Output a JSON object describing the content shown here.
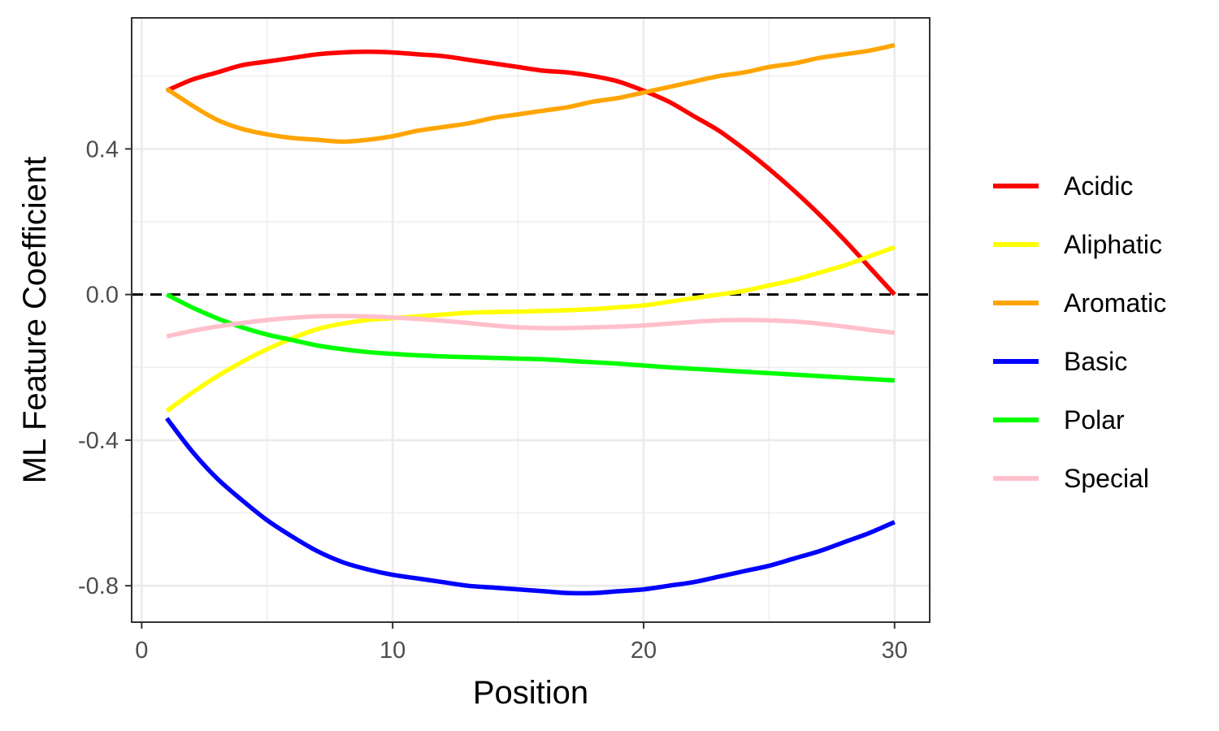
{
  "chart_data": {
    "type": "line",
    "title": "",
    "xlabel": "Position",
    "ylabel": "ML Feature Coefficient",
    "xlim": [
      -0.4,
      31.4
    ],
    "ylim": [
      -0.9,
      0.76
    ],
    "x_ticks": [
      0,
      10,
      20,
      30
    ],
    "x_tick_labels": [
      "0",
      "10",
      "20",
      "30"
    ],
    "y_ticks": [
      -0.8,
      -0.4,
      0.0,
      0.4
    ],
    "y_tick_labels": [
      "-0.8",
      "-0.4",
      "0.0",
      "0.4"
    ],
    "grid": true,
    "legend_position": "right",
    "reference_line": {
      "y": 0.0,
      "style": "dashed",
      "color": "#000000"
    },
    "series": [
      {
        "name": "Acidic",
        "color": "#ff0000",
        "x": [
          1,
          2,
          3,
          4,
          5,
          6,
          7,
          8,
          9,
          10,
          11,
          12,
          13,
          14,
          15,
          16,
          17,
          18,
          19,
          20,
          21,
          22,
          23,
          24,
          25,
          26,
          27,
          28,
          29,
          30
        ],
        "y": [
          0.56,
          0.59,
          0.61,
          0.63,
          0.64,
          0.65,
          0.66,
          0.665,
          0.667,
          0.665,
          0.66,
          0.655,
          0.645,
          0.635,
          0.625,
          0.615,
          0.61,
          0.6,
          0.585,
          0.56,
          0.53,
          0.49,
          0.45,
          0.4,
          0.345,
          0.285,
          0.22,
          0.15,
          0.075,
          0.0
        ]
      },
      {
        "name": "Aliphatic",
        "color": "#ffff00",
        "x": [
          1,
          2,
          3,
          4,
          5,
          6,
          7,
          8,
          9,
          10,
          11,
          12,
          13,
          14,
          15,
          16,
          17,
          18,
          19,
          20,
          21,
          22,
          23,
          24,
          25,
          26,
          27,
          28,
          29,
          30
        ],
        "y": [
          -0.32,
          -0.27,
          -0.225,
          -0.185,
          -0.15,
          -0.12,
          -0.095,
          -0.08,
          -0.07,
          -0.065,
          -0.06,
          -0.055,
          -0.05,
          -0.048,
          -0.047,
          -0.045,
          -0.043,
          -0.04,
          -0.035,
          -0.03,
          -0.02,
          -0.01,
          0.0,
          0.01,
          0.025,
          0.04,
          0.06,
          0.08,
          0.105,
          0.13
        ]
      },
      {
        "name": "Aromatic",
        "color": "#ffa500",
        "x": [
          1,
          2,
          3,
          4,
          5,
          6,
          7,
          8,
          9,
          10,
          11,
          12,
          13,
          14,
          15,
          16,
          17,
          18,
          19,
          20,
          21,
          22,
          23,
          24,
          25,
          26,
          27,
          28,
          29,
          30
        ],
        "y": [
          0.565,
          0.52,
          0.48,
          0.455,
          0.44,
          0.43,
          0.425,
          0.42,
          0.425,
          0.435,
          0.45,
          0.46,
          0.47,
          0.485,
          0.495,
          0.505,
          0.515,
          0.53,
          0.54,
          0.555,
          0.57,
          0.585,
          0.6,
          0.61,
          0.625,
          0.635,
          0.65,
          0.66,
          0.67,
          0.685
        ]
      },
      {
        "name": "Basic",
        "color": "#0000ff",
        "x": [
          1,
          2,
          3,
          4,
          5,
          6,
          7,
          8,
          9,
          10,
          11,
          12,
          13,
          14,
          15,
          16,
          17,
          18,
          19,
          20,
          21,
          22,
          23,
          24,
          25,
          26,
          27,
          28,
          29,
          30
        ],
        "y": [
          -0.34,
          -0.43,
          -0.505,
          -0.565,
          -0.62,
          -0.665,
          -0.705,
          -0.735,
          -0.755,
          -0.77,
          -0.78,
          -0.79,
          -0.8,
          -0.805,
          -0.81,
          -0.815,
          -0.82,
          -0.82,
          -0.815,
          -0.81,
          -0.8,
          -0.79,
          -0.775,
          -0.76,
          -0.745,
          -0.725,
          -0.705,
          -0.68,
          -0.655,
          -0.625
        ]
      },
      {
        "name": "Polar",
        "color": "#00ff00",
        "x": [
          1,
          2,
          3,
          4,
          5,
          6,
          7,
          8,
          9,
          10,
          11,
          12,
          13,
          14,
          15,
          16,
          17,
          18,
          19,
          20,
          21,
          22,
          23,
          24,
          25,
          26,
          27,
          28,
          29,
          30
        ],
        "y": [
          0.0,
          -0.035,
          -0.065,
          -0.09,
          -0.11,
          -0.125,
          -0.14,
          -0.15,
          -0.158,
          -0.163,
          -0.167,
          -0.17,
          -0.172,
          -0.174,
          -0.176,
          -0.178,
          -0.182,
          -0.186,
          -0.19,
          -0.195,
          -0.2,
          -0.204,
          -0.208,
          -0.212,
          -0.216,
          -0.22,
          -0.224,
          -0.228,
          -0.232,
          -0.236
        ]
      },
      {
        "name": "Special",
        "color": "#ffc0cb",
        "x": [
          1,
          2,
          3,
          4,
          5,
          6,
          7,
          8,
          9,
          10,
          11,
          12,
          13,
          14,
          15,
          16,
          17,
          18,
          19,
          20,
          21,
          22,
          23,
          24,
          25,
          26,
          27,
          28,
          29,
          30
        ],
        "y": [
          -0.115,
          -0.1,
          -0.088,
          -0.078,
          -0.07,
          -0.064,
          -0.06,
          -0.059,
          -0.06,
          -0.063,
          -0.067,
          -0.072,
          -0.078,
          -0.085,
          -0.09,
          -0.092,
          -0.092,
          -0.09,
          -0.088,
          -0.085,
          -0.08,
          -0.075,
          -0.071,
          -0.07,
          -0.071,
          -0.074,
          -0.08,
          -0.088,
          -0.097,
          -0.105
        ]
      }
    ]
  }
}
